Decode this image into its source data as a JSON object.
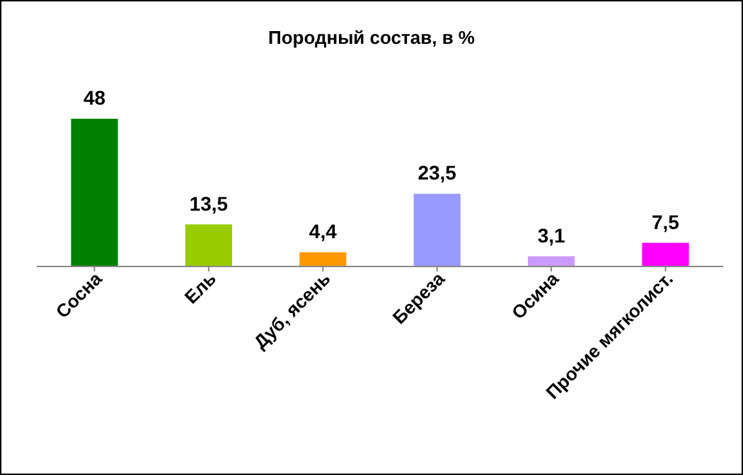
{
  "chart_data": {
    "type": "bar",
    "title": "Породный состав, в %",
    "categories": [
      "Сосна",
      "Ель",
      "Дуб, ясень",
      "Береза",
      "Осина",
      "Прочие мягколист."
    ],
    "values": [
      48,
      13.5,
      4.4,
      23.5,
      3.1,
      7.5
    ],
    "colors": [
      "#008000",
      "#99cc00",
      "#ff9900",
      "#9999ff",
      "#cc99ff",
      "#ff00ff"
    ],
    "value_labels": [
      "48",
      "13,5",
      "4,4",
      "23,5",
      "3,1",
      "7,5"
    ]
  }
}
